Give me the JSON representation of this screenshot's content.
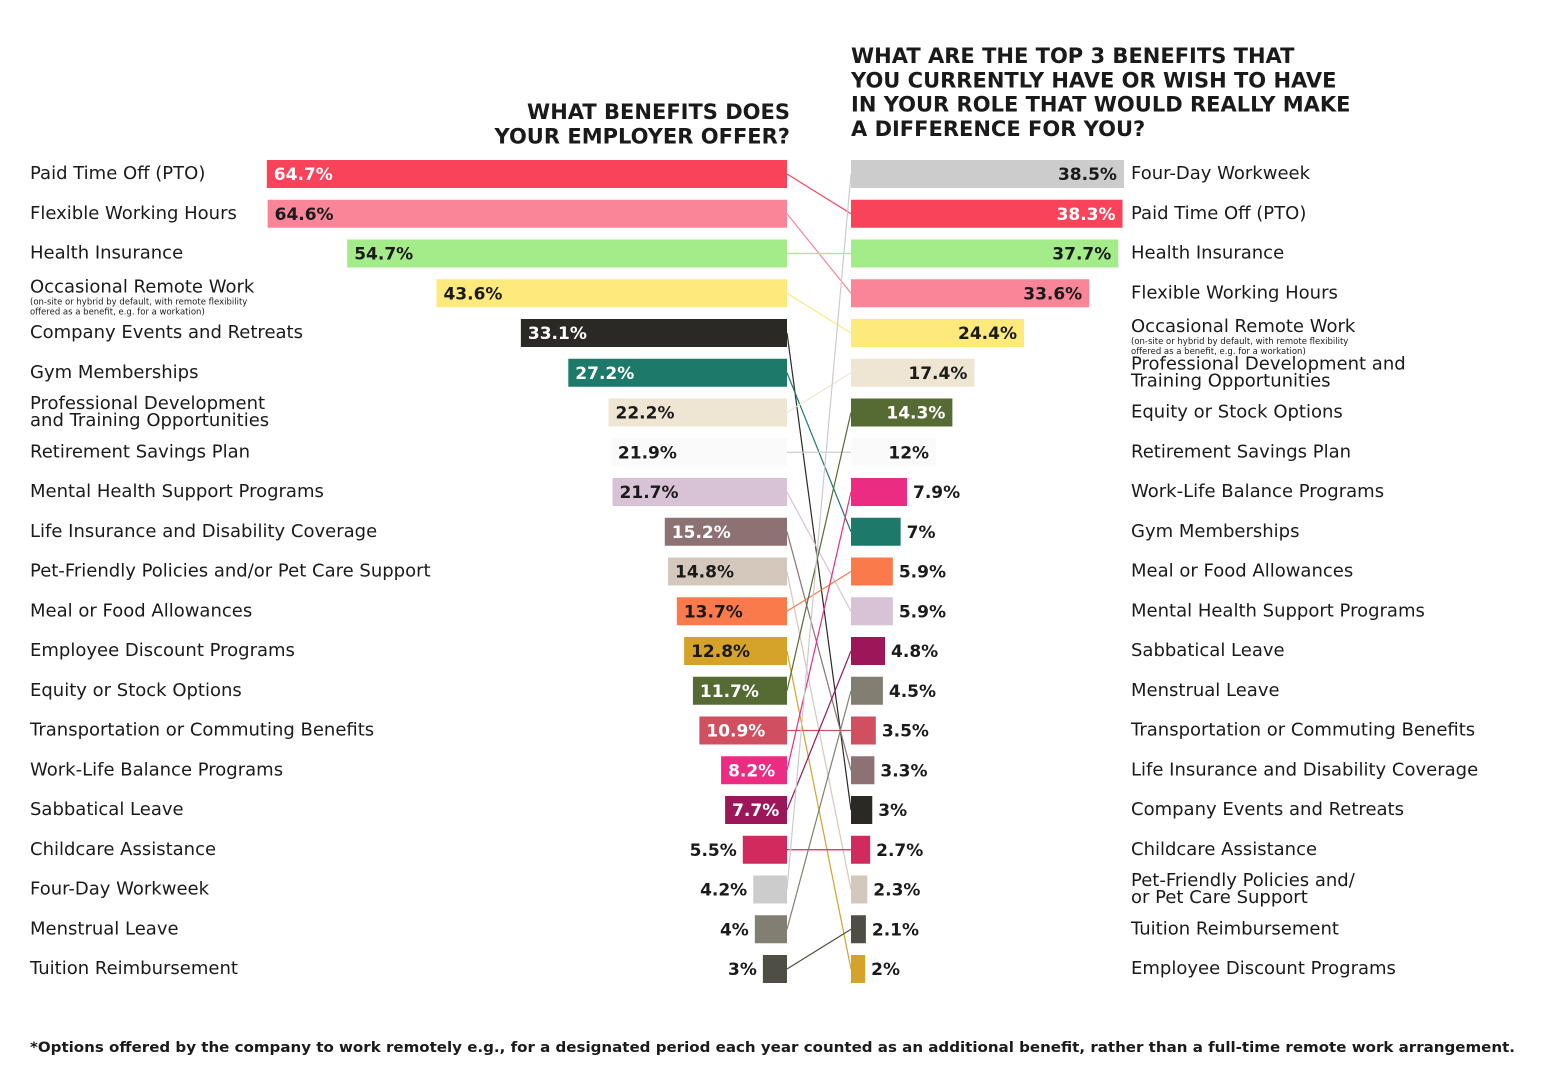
{
  "chart_data": [
    {
      "type": "bar",
      "title": "WHAT BENEFITS DOES\nYOUR EMPLOYER OFFER?",
      "categories": [
        "Paid Time Off (PTO)",
        "Flexible Working Hours",
        "Health Insurance",
        "Occasional Remote Work",
        "Company Events and Retreats",
        "Gym Memberships",
        "Professional Development\nand Training Opportunities",
        "Retirement Savings Plan",
        "Mental Health Support Programs",
        "Life Insurance and Disability Coverage",
        "Pet-Friendly Policies and/or Pet Care Support",
        "Meal or Food Allowances",
        "Employee Discount Programs",
        "Equity or Stock Options",
        "Transportation or Commuting Benefits",
        "Work-Life Balance Programs",
        "Sabbatical Leave",
        "Childcare Assistance",
        "Four-Day Workweek",
        "Menstrual Leave",
        "Tuition Reimbursement"
      ],
      "values": [
        64.7,
        64.6,
        54.7,
        43.6,
        33.1,
        27.2,
        22.2,
        21.9,
        21.7,
        15.2,
        14.8,
        13.7,
        12.8,
        11.7,
        10.9,
        8.2,
        7.7,
        5.5,
        4.2,
        4,
        3
      ],
      "value_labels": [
        "64.7%",
        "64.6%",
        "54.7%",
        "43.6%",
        "33.1%",
        "27.2%",
        "22.2%",
        "21.9%",
        "21.7%",
        "15.2%",
        "14.8%",
        "13.7%",
        "12.8%",
        "11.7%",
        "10.9%",
        "8.2%",
        "7.7%",
        "5.5%",
        "4.2%",
        "4%",
        "3%"
      ],
      "colors": [
        "#f9435b",
        "#fa8599",
        "#a4eb8a",
        "#fde97c",
        "#2b2926",
        "#1d7a6a",
        "#eee6d3",
        "#fafafa",
        "#d7c3d5",
        "#8c7272",
        "#d4c8bd",
        "#fb7a4c",
        "#d6a32a",
        "#566b34",
        "#d0505f",
        "#ec2c83",
        "#9c175a",
        "#d12a5e",
        "#cccccc",
        "#827f72",
        "#4f4e45"
      ],
      "note": "(on-site or hybrid by default, with remote flexibility\noffered as a benefit, e.g. for a workation)"
    },
    {
      "type": "bar",
      "title": "WHAT ARE THE TOP 3 BENEFITS THAT\nYOU CURRENTLY HAVE OR WISH TO HAVE\nIN YOUR ROLE THAT WOULD REALLY MAKE\nA DIFFERENCE FOR YOU?",
      "categories": [
        "Four-Day Workweek",
        "Paid Time Off (PTO)",
        "Health Insurance",
        "Flexible Working Hours",
        "Occasional Remote Work",
        "Professional Development and\nTraining Opportunities",
        "Equity or Stock Options",
        "Retirement Savings Plan",
        "Work-Life Balance Programs",
        "Gym Memberships",
        "Meal or Food Allowances",
        "Mental Health Support Programs",
        "Sabbatical Leave",
        "Menstrual Leave",
        "Transportation or Commuting Benefits",
        "Life Insurance and Disability Coverage",
        "Company Events and Retreats",
        "Childcare Assistance",
        "Pet-Friendly Policies and/\nor Pet Care Support",
        "Tuition Reimbursement",
        "Employee Discount Programs"
      ],
      "values": [
        38.5,
        38.3,
        37.7,
        33.6,
        24.4,
        17.4,
        14.3,
        12,
        7.9,
        7,
        5.9,
        5.9,
        4.8,
        4.5,
        3.5,
        3.3,
        3,
        2.7,
        2.3,
        2.1,
        2
      ],
      "value_labels": [
        "38.5%",
        "38.3%",
        "37.7%",
        "33.6%",
        "24.4%",
        "17.4%",
        "14.3%",
        "12%",
        "7.9%",
        "7%",
        "5.9%",
        "5.9%",
        "4.8%",
        "4.5%",
        "3.5%",
        "3.3%",
        "3%",
        "2.7%",
        "2.3%",
        "2.1%",
        "2%"
      ],
      "colors": [
        "#cccccc",
        "#f9435b",
        "#a4eb8a",
        "#fa8599",
        "#fde97c",
        "#eee6d3",
        "#566b34",
        "#fafafa",
        "#ec2c83",
        "#1d7a6a",
        "#fb7a4c",
        "#d7c3d5",
        "#9c175a",
        "#827f72",
        "#d0505f",
        "#8c7272",
        "#2b2926",
        "#d12a5e",
        "#d4c8bd",
        "#4f4e45",
        "#d6a32a"
      ],
      "note": "(on-site or hybrid by default, with remote flexibility\noffered as a benefit, e.g. for a workation)"
    }
  ],
  "footnote": "*Options offered by the company to work remotely e.g., for a designated period each year counted as an additional benefit, rather than a full-time remote work arrangement."
}
